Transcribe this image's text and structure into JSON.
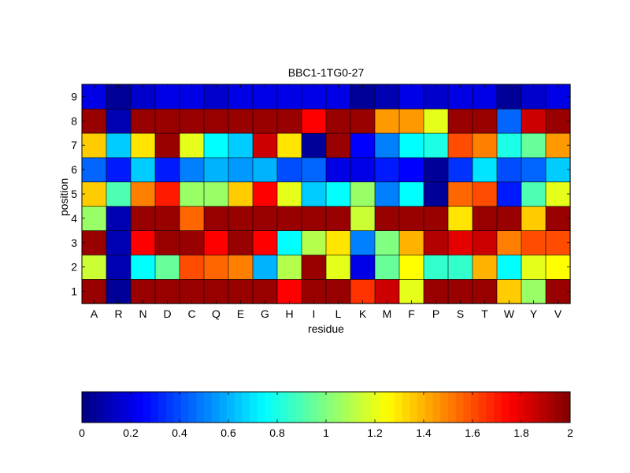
{
  "chart_data": {
    "type": "heatmap",
    "title": "BBC1-1TG0-27",
    "xlabel": "residue",
    "ylabel": "position",
    "x_categories": [
      "A",
      "R",
      "N",
      "D",
      "C",
      "Q",
      "E",
      "G",
      "H",
      "I",
      "L",
      "K",
      "M",
      "F",
      "P",
      "S",
      "T",
      "W",
      "Y",
      "V"
    ],
    "y_categories": [
      "1",
      "2",
      "3",
      "4",
      "5",
      "6",
      "7",
      "8",
      "9"
    ],
    "values": [
      [
        1.95,
        0.05,
        1.95,
        1.95,
        1.95,
        1.95,
        1.95,
        1.95,
        1.75,
        1.95,
        1.95,
        1.65,
        1.85,
        1.2,
        1.95,
        1.95,
        1.95,
        1.35,
        1.05,
        1.95
      ],
      [
        1.15,
        0.1,
        0.75,
        0.95,
        1.6,
        1.55,
        1.5,
        0.6,
        1.1,
        1.95,
        1.2,
        0.2,
        0.95,
        1.25,
        0.85,
        0.85,
        1.4,
        0.75,
        1.2,
        1.25
      ],
      [
        1.95,
        0.1,
        1.75,
        1.95,
        1.95,
        1.75,
        1.95,
        1.75,
        0.75,
        1.1,
        1.3,
        0.5,
        1.0,
        1.4,
        1.9,
        1.8,
        1.85,
        1.5,
        1.6,
        1.6
      ],
      [
        1.05,
        0.1,
        1.95,
        1.95,
        1.55,
        1.95,
        1.95,
        1.95,
        1.95,
        1.95,
        1.95,
        1.15,
        1.95,
        1.95,
        1.95,
        1.3,
        1.95,
        1.95,
        1.35,
        1.95
      ],
      [
        1.35,
        0.9,
        1.5,
        1.7,
        1.05,
        1.05,
        1.35,
        1.75,
        1.2,
        0.65,
        0.75,
        1.05,
        0.5,
        0.75,
        0.05,
        1.55,
        1.6,
        0.3,
        0.9,
        1.2
      ],
      [
        0.45,
        0.3,
        0.65,
        0.3,
        0.5,
        0.6,
        0.55,
        0.6,
        0.4,
        0.45,
        0.2,
        0.2,
        0.3,
        0.25,
        0.05,
        0.35,
        0.7,
        0.4,
        0.45,
        0.65
      ],
      [
        1.35,
        0.65,
        1.3,
        1.95,
        1.2,
        0.75,
        0.65,
        1.85,
        1.3,
        0.05,
        1.95,
        0.25,
        0.5,
        0.75,
        0.8,
        1.6,
        1.5,
        0.8,
        0.95,
        1.45
      ],
      [
        1.95,
        0.1,
        1.95,
        1.95,
        1.95,
        1.95,
        1.95,
        1.95,
        1.95,
        1.75,
        1.95,
        1.95,
        1.45,
        1.45,
        1.2,
        1.95,
        1.95,
        0.45,
        1.85,
        1.95
      ],
      [
        0.2,
        0.05,
        0.15,
        0.2,
        0.2,
        0.15,
        0.2,
        0.2,
        0.2,
        0.2,
        0.2,
        0.05,
        0.1,
        0.2,
        0.15,
        0.2,
        0.2,
        0.05,
        0.15,
        0.2
      ]
    ],
    "colormap": "jet",
    "clim": [
      0,
      2
    ],
    "colorbar": {
      "ticks": [
        0,
        0.2,
        0.4,
        0.6,
        0.8,
        1,
        1.2,
        1.4,
        1.6,
        1.8,
        2
      ],
      "tick_labels": [
        "0",
        "0.2",
        "0.4",
        "0.6",
        "0.8",
        "1",
        "1.2",
        "1.4",
        "1.6",
        "1.8",
        "2"
      ],
      "orientation": "horizontal",
      "placement": "bottom"
    },
    "grid": false
  }
}
